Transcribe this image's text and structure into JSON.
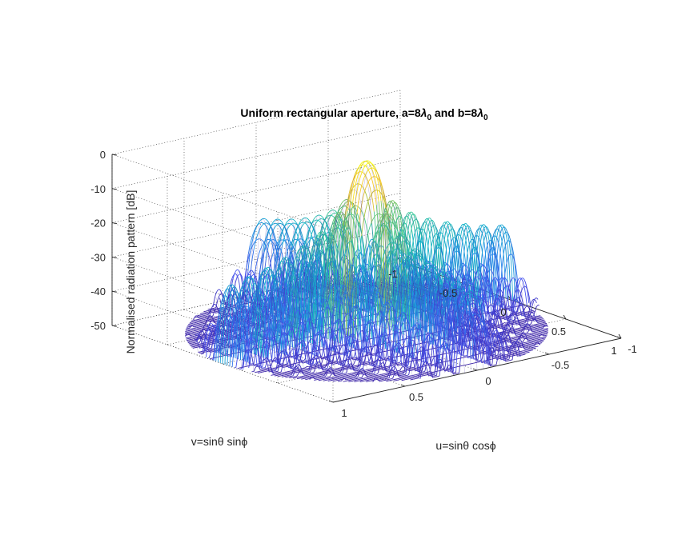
{
  "chart_data": {
    "type": "surface",
    "title": "Uniform rectangular aperture, a=8λ0 and b=8λ0",
    "title_parts": {
      "prefix": "Uniform rectangular aperture, a=8",
      "lambda": "λ",
      "sub": "0",
      "middle": " and b=8"
    },
    "xlabel": "u=sinθ cosϕ",
    "ylabel": "v=sinθ sinϕ",
    "zlabel": "Normalised radiation pattern [dB]",
    "x_ticks": [
      "-1",
      "-0.5",
      "0",
      "0.5",
      "1"
    ],
    "y_ticks": [
      "-1",
      "-0.5",
      "0",
      "0.5",
      "1"
    ],
    "z_ticks": [
      "-50",
      "-40",
      "-30",
      "-20",
      "-10",
      "0"
    ],
    "xlim": [
      -1,
      1
    ],
    "ylim": [
      -1,
      1
    ],
    "zlim": [
      -50,
      0
    ],
    "function": "20*log10(|sinc(a*u)*sinc(b*v)|), a=8, b=8, domain u^2+v^2<=1, floored at -50 dB",
    "a_wavelengths": 8,
    "b_wavelengths": 8,
    "peak_db": 0,
    "floor_db": -50,
    "grid": true,
    "colormap": "parula"
  }
}
